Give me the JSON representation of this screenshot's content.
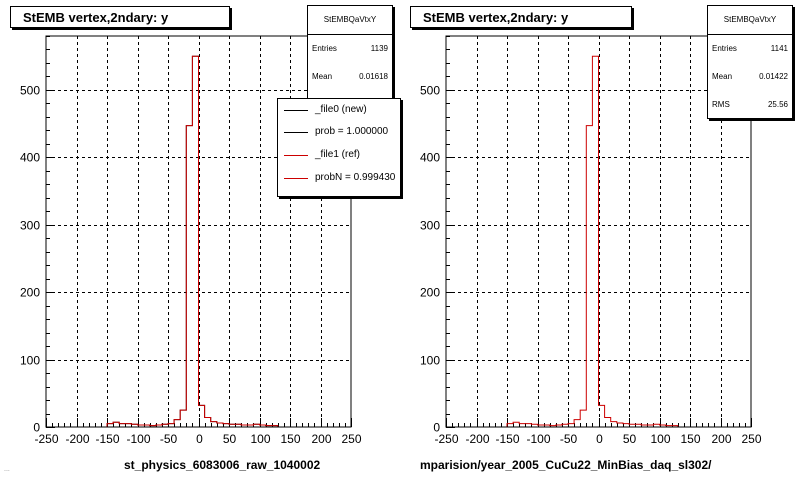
{
  "colors": {
    "new_line": "#000000",
    "ref_line": "#cc0000",
    "grid": "#000000",
    "background": "#ffffff"
  },
  "corner_text": "...",
  "chart_data": [
    {
      "type": "bar",
      "title": "StEMB  vertex,2ndary: y",
      "xlabel": "st_physics_6083006_raw_1040002",
      "ylabel": "",
      "xlim": [
        -250,
        250
      ],
      "ylim": [
        0,
        580
      ],
      "xticks": [
        -250,
        -200,
        -150,
        -100,
        -50,
        0,
        50,
        100,
        150,
        200,
        250
      ],
      "yticks": [
        0,
        100,
        200,
        300,
        400,
        500
      ],
      "grid": true,
      "stats": {
        "name": "StEMBQaVtxY",
        "rows": [
          [
            "Entries",
            "1139"
          ],
          [
            "Mean",
            "0.01618"
          ]
        ]
      },
      "legend": {
        "placement": "top-right",
        "entries": [
          {
            "label": "_file0 (new)",
            "color": "#000000"
          },
          {
            "label": "prob = 1.000000",
            "color": "#000000"
          },
          {
            "label": "_file1 (ref)",
            "color": "#cc0000"
          },
          {
            "label": "probN = 0.999430",
            "color": "#cc0000"
          }
        ]
      },
      "bin_edges_start": -250,
      "bin_width": 10,
      "series": [
        {
          "values": [
            0,
            0,
            0,
            0,
            0,
            0,
            0,
            0,
            0,
            0,
            5,
            7,
            5,
            5,
            4,
            3,
            3,
            2,
            3,
            4,
            5,
            11,
            25,
            447,
            550,
            32,
            14,
            8,
            6,
            5,
            4,
            4,
            3,
            3,
            4,
            3,
            2,
            2,
            0,
            0,
            0,
            0,
            0,
            0,
            0,
            0,
            0,
            0,
            0,
            0
          ]
        },
        {
          "values": [
            0,
            0,
            0,
            0,
            0,
            0,
            0,
            0,
            0,
            0,
            5,
            7,
            5,
            5,
            4,
            3,
            3,
            2,
            3,
            4,
            5,
            11,
            25,
            447,
            550,
            32,
            14,
            8,
            6,
            5,
            4,
            4,
            3,
            3,
            4,
            3,
            2,
            2,
            0,
            0,
            0,
            0,
            0,
            0,
            0,
            0,
            0,
            0,
            0,
            0
          ]
        }
      ]
    },
    {
      "type": "bar",
      "title": "StEMB  vertex,2ndary: y",
      "xlabel": "mparision/year_2005_CuCu22_MinBias_daq_sl302/",
      "ylabel": "",
      "xlim": [
        -250,
        250
      ],
      "ylim": [
        0,
        580
      ],
      "xticks": [
        -250,
        -200,
        -150,
        -100,
        -50,
        0,
        50,
        100,
        150,
        200,
        250
      ],
      "yticks": [
        0,
        100,
        200,
        300,
        400,
        500
      ],
      "grid": true,
      "stats": {
        "name": "StEMBQaVtxY",
        "rows": [
          [
            "Entries",
            "1141"
          ],
          [
            "Mean",
            "0.01422"
          ],
          [
            "RMS",
            "25.56"
          ]
        ]
      },
      "bin_edges_start": -250,
      "bin_width": 10,
      "series": [
        {
          "values": [
            0,
            0,
            0,
            0,
            0,
            0,
            0,
            0,
            0,
            0,
            5,
            7,
            5,
            5,
            4,
            3,
            3,
            2,
            3,
            4,
            5,
            11,
            25,
            447,
            550,
            32,
            14,
            8,
            6,
            5,
            4,
            4,
            3,
            3,
            4,
            3,
            2,
            2,
            0,
            0,
            0,
            0,
            0,
            0,
            0,
            0,
            0,
            0,
            0,
            0
          ]
        }
      ]
    }
  ]
}
